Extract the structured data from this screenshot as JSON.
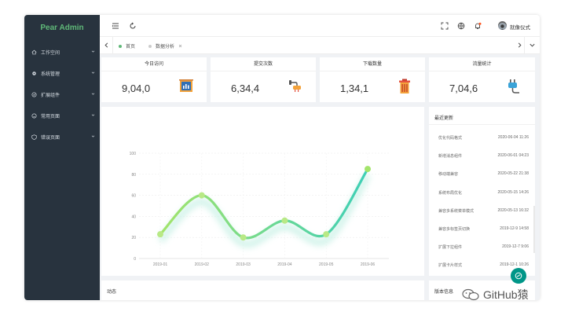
{
  "sidebar": {
    "logo": "Pear Admin",
    "items": [
      {
        "label": "工作空间",
        "icon": "home-icon"
      },
      {
        "label": "系统管理",
        "icon": "settings-icon"
      },
      {
        "label": "扩展组件",
        "icon": "component-icon"
      },
      {
        "label": "常用页面",
        "icon": "page-icon"
      },
      {
        "label": "错误页面",
        "icon": "error-icon"
      }
    ]
  },
  "header": {
    "username": "就像仪式",
    "has_notification": true
  },
  "tabs": [
    {
      "label": "首页",
      "active": true
    },
    {
      "label": "数据分析",
      "active": false
    }
  ],
  "stats": [
    {
      "title": "今日访问",
      "value": "9,04,0",
      "icon": "chart-board-icon"
    },
    {
      "title": "提交次数",
      "value": "6,34,4",
      "icon": "plug-hand-icon"
    },
    {
      "title": "下载数量",
      "value": "1,34,1",
      "icon": "trash-can-icon"
    },
    {
      "title": "流量统计",
      "value": "7,04,6",
      "icon": "power-plug-icon"
    }
  ],
  "chart_data": {
    "type": "line",
    "x": [
      "2019-01",
      "2019-02",
      "2019-03",
      "2019-04",
      "2019-05",
      "2019-06"
    ],
    "series": [
      {
        "values": [
          23,
          60,
          20,
          36,
          23,
          85
        ]
      }
    ],
    "ylim": [
      0,
      100
    ],
    "yticks": [
      "0",
      "20",
      "40",
      "60",
      "80",
      "100"
    ],
    "smooth": true,
    "grid": true,
    "colors": {
      "start": "#a3e46b",
      "end": "#3ecfb6"
    }
  },
  "updates": {
    "title": "最近更新",
    "items": [
      {
        "name": "优化代码格式",
        "time": "2020-06-04 11:26"
      },
      {
        "name": "新增消息组件",
        "time": "2020-06-01 04:23"
      },
      {
        "name": "移动端兼容",
        "time": "2020-05-22 21:38"
      },
      {
        "name": "系统布局优化",
        "time": "2020-05-15 14:26"
      },
      {
        "name": "兼容多系统菜单模式",
        "time": "2020-05-13 16:32"
      },
      {
        "name": "兼容多标签页切换",
        "time": "2019-12-9 14:58"
      },
      {
        "name": "扩展下拉组件",
        "time": "2019-12-7 9:06"
      },
      {
        "name": "扩展卡片样式",
        "time": "2019-12-1 10:26"
      }
    ]
  },
  "bottom": {
    "dynamic_title": "动态",
    "version_title": "版本信息"
  },
  "watermark": "GitHub猿"
}
